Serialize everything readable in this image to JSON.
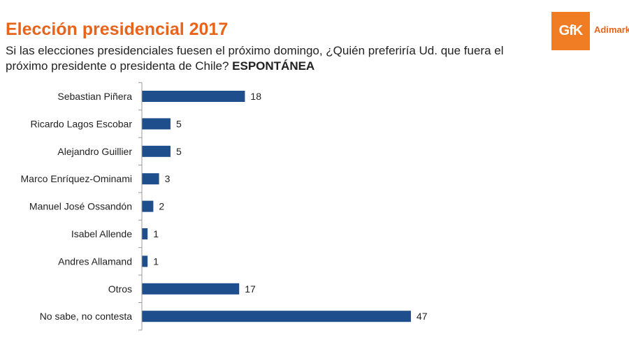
{
  "header": {
    "title": "Elección presidencial 2017",
    "subtitle_main": "Si las elecciones presidenciales fuesen el próximo domingo, ¿Quién preferiría Ud. que fuera el próximo presidente o presidenta de Chile? ",
    "subtitle_bold": "ESPONTÁNEA"
  },
  "logo": {
    "mark": "GfK",
    "brand": "Adimark",
    "color": "#f07d23"
  },
  "chart_data": {
    "type": "bar",
    "orientation": "horizontal",
    "categories": [
      "Sebastian Piñera",
      "Ricardo Lagos Escobar",
      "Alejandro Guillier",
      "Marco Enríquez-Ominami",
      "Manuel José Ossandón",
      "Isabel Allende",
      "Andres Allamand",
      "Otros",
      "No sabe, no contesta"
    ],
    "values": [
      18,
      5,
      5,
      3,
      2,
      1,
      1,
      17,
      47
    ],
    "xlim": [
      0,
      50
    ],
    "grid": false,
    "bar_color": "#1f4e8c"
  }
}
